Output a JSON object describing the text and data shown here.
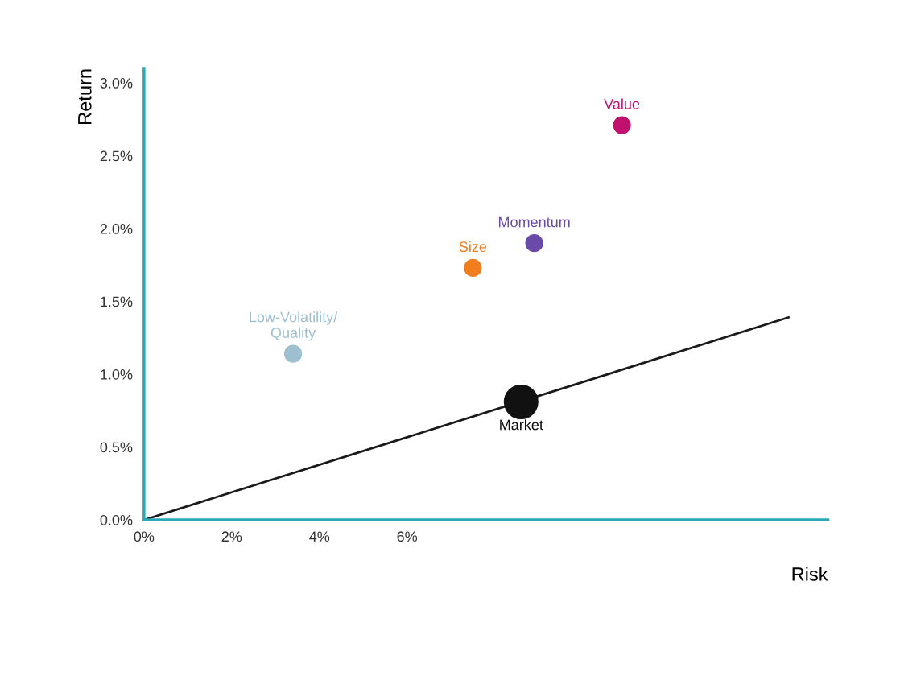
{
  "chart_data": {
    "type": "bubble",
    "xlabel": "Risk",
    "ylabel": "Return",
    "xlim": [
      0,
      15.6
    ],
    "ylim": [
      0,
      3.1
    ],
    "xticks": [
      {
        "value": 0,
        "label": "0%"
      },
      {
        "value": 2,
        "label": "2%"
      },
      {
        "value": 4,
        "label": "4%"
      },
      {
        "value": 6,
        "label": "6%"
      }
    ],
    "yticks": [
      {
        "value": 0,
        "label": "0.0%"
      },
      {
        "value": 0.5,
        "label": "0.5%"
      },
      {
        "value": 1,
        "label": "1.0%"
      },
      {
        "value": 1.5,
        "label": "1.5%"
      },
      {
        "value": 2,
        "label": "2.0%"
      },
      {
        "value": 2.5,
        "label": "2.5%"
      },
      {
        "value": 3,
        "label": "3.0%"
      }
    ],
    "grid": false,
    "legend": false,
    "marker": "circle",
    "series": [
      {
        "type": "line",
        "marker": "none",
        "color": "#1a1a1a",
        "x": [
          0,
          14.7
        ],
        "values": [
          0,
          1.39
        ]
      },
      {
        "name": "Low-Volatility/\nQuality",
        "color": "#9dbfcf",
        "x": [
          3.4
        ],
        "values": [
          1.14
        ],
        "sizes": [
          0.25
        ]
      },
      {
        "name": "Size",
        "color": "#f07d1e",
        "x": [
          7.5
        ],
        "values": [
          1.73
        ],
        "sizes": [
          0.25
        ]
      },
      {
        "name": "Momentum",
        "color": "#6a4aa8",
        "x": [
          8.9
        ],
        "values": [
          1.9
        ],
        "sizes": [
          0.25
        ]
      },
      {
        "name": "Value",
        "color": "#c0116e",
        "x": [
          10.9
        ],
        "values": [
          2.71
        ],
        "sizes": [
          0.25
        ]
      },
      {
        "name": "Market",
        "color": "#111111",
        "x": [
          8.6
        ],
        "values": [
          0.81
        ],
        "sizes": [
          1
        ]
      }
    ]
  }
}
